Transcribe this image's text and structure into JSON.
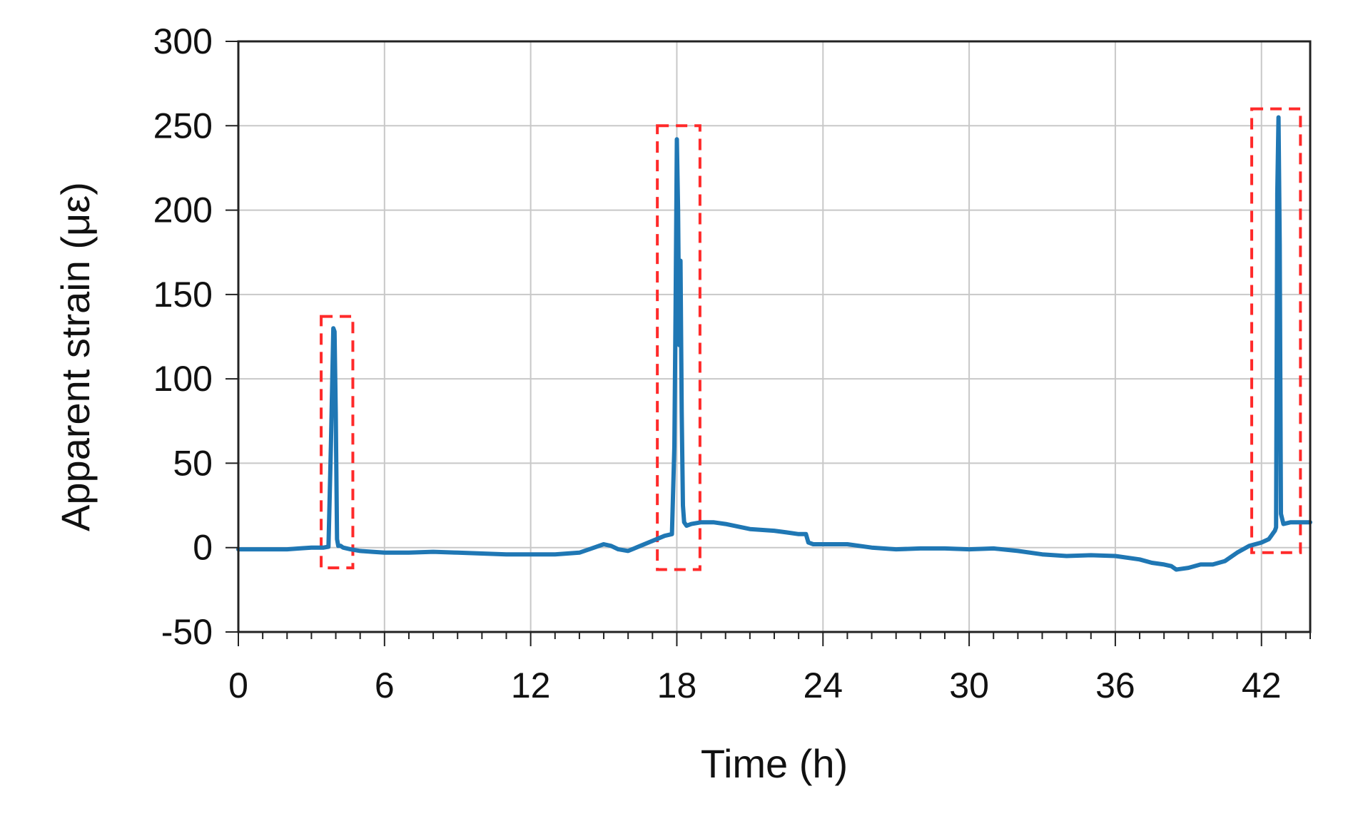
{
  "chart_data": {
    "type": "line",
    "title": "",
    "xlabel": "Time (h)",
    "ylabel": "Apparent strain (με)",
    "xlim": [
      0,
      44
    ],
    "ylim": [
      -50,
      300
    ],
    "x_ticks": [
      0,
      6,
      12,
      18,
      24,
      30,
      36,
      42
    ],
    "x_tick_labels": [
      "0",
      "6",
      "12",
      "18",
      "24",
      "30",
      "36",
      "42"
    ],
    "y_ticks": [
      -50,
      0,
      50,
      100,
      150,
      200,
      250,
      300
    ],
    "y_tick_labels": [
      "-50",
      "0",
      "50",
      "100",
      "150",
      "200",
      "250",
      "300"
    ],
    "x_minor_step": 1,
    "grid": true,
    "legend": "none",
    "colors": {
      "series": "#1f77b4",
      "highlight": "#ff2a2a",
      "grid": "#c8c8c8"
    },
    "series": [
      {
        "x": [
          0,
          0.5,
          1,
          1.5,
          2,
          2.5,
          3,
          3.5,
          3.7,
          3.8,
          3.9,
          3.95,
          4.0,
          4.05,
          4.1,
          4.2,
          4.3,
          4.6,
          5,
          5.5,
          6,
          7,
          8,
          9,
          10,
          11,
          12,
          13,
          14,
          14.5,
          15,
          15.3,
          15.6,
          16,
          16.5,
          17,
          17.5,
          17.8,
          17.9,
          17.95,
          18.0,
          18.05,
          18.1,
          18.15,
          18.2,
          18.25,
          18.3,
          18.4,
          18.6,
          19,
          19.5,
          20,
          21,
          22,
          22.5,
          23,
          23.3,
          23.4,
          23.6,
          24,
          25,
          26,
          27,
          28,
          29,
          30,
          31,
          32,
          33,
          34,
          35,
          36,
          37,
          37.5,
          38,
          38.3,
          38.5,
          39,
          39.5,
          40,
          40.5,
          41,
          41.5,
          42,
          42.3,
          42.4,
          42.5,
          42.55,
          42.6,
          42.65,
          42.7,
          42.75,
          42.8,
          42.9,
          43.2,
          44
        ],
        "y": [
          -1,
          -1,
          -1,
          -1,
          -1,
          -0.5,
          0,
          0,
          0.5,
          60,
          130,
          128,
          80,
          5,
          1,
          1,
          0,
          -1,
          -2,
          -2.5,
          -3,
          -3,
          -2.5,
          -3,
          -3.5,
          -4,
          -4,
          -4,
          -3,
          -0.5,
          2,
          1,
          -1,
          -2,
          1,
          4,
          7,
          8,
          60,
          140,
          242,
          200,
          120,
          170,
          80,
          25,
          15,
          13,
          14,
          15,
          15,
          14,
          11,
          10,
          9,
          8,
          8,
          3,
          2,
          2,
          2,
          0,
          -1,
          -0.5,
          -0.5,
          -1,
          -0.5,
          -2,
          -4,
          -5,
          -4.5,
          -5,
          -7,
          -9,
          -10,
          -11,
          -13,
          -12,
          -10,
          -10,
          -8,
          -3,
          1,
          3,
          5,
          7,
          9,
          10,
          12,
          210,
          255,
          180,
          20,
          14,
          15,
          15
        ]
      }
    ],
    "highlight_regions": [
      {
        "x": [
          3.4,
          4.7
        ],
        "y": [
          -12,
          137
        ]
      },
      {
        "x": [
          17.2,
          18.95
        ],
        "y": [
          -13,
          250
        ]
      },
      {
        "x": [
          41.6,
          43.6
        ],
        "y": [
          -3,
          260
        ]
      }
    ]
  }
}
